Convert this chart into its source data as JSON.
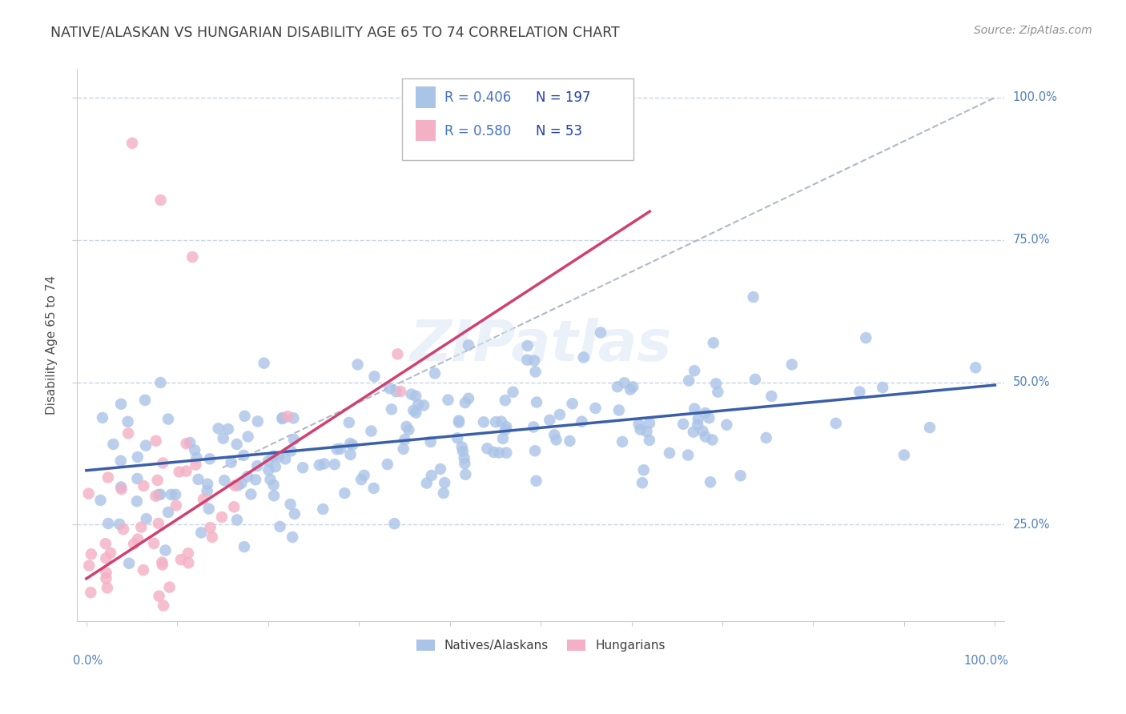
{
  "title": "NATIVE/ALASKAN VS HUNGARIAN DISABILITY AGE 65 TO 74 CORRELATION CHART",
  "source": "Source: ZipAtlas.com",
  "ylabel": "Disability Age 65 to 74",
  "blue_R": 0.406,
  "blue_N": 197,
  "pink_R": 0.58,
  "pink_N": 53,
  "blue_color": "#aac4e8",
  "pink_color": "#f4b0c4",
  "blue_line_color": "#3a5fa8",
  "pink_line_color": "#d04070",
  "ref_line_color": "#b0b8c8",
  "legend_label_blue": "Natives/Alaskans",
  "legend_label_pink": "Hungarians",
  "title_color": "#404040",
  "source_color": "#909090",
  "axis_label_color": "#5080c0",
  "R_color": "#4472c4",
  "N_color": "#2040b0",
  "background_color": "#ffffff",
  "grid_color": "#c8d4e8",
  "blue_trend_x0": 0.0,
  "blue_trend_y0": 0.345,
  "blue_trend_x1": 1.0,
  "blue_trend_y1": 0.495,
  "pink_trend_x0": 0.0,
  "pink_trend_y0": 0.155,
  "pink_trend_x1": 0.62,
  "pink_trend_y1": 0.8,
  "ref_line_x0": 0.15,
  "ref_line_y0": 0.35,
  "ref_line_x1": 1.0,
  "ref_line_y1": 1.0,
  "seed": 7,
  "xmin": 0.0,
  "xmax": 1.0,
  "ymin": 0.1,
  "ymax": 1.05
}
